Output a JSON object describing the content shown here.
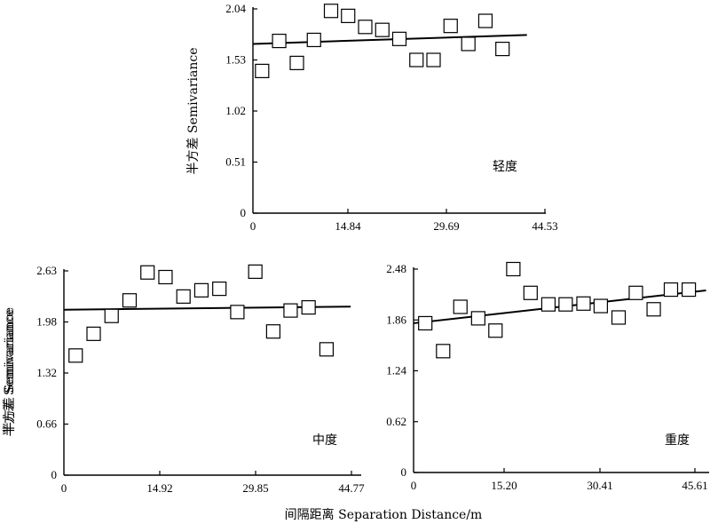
{
  "chart_data": [
    {
      "type": "scatter",
      "label": "轻度",
      "ylabel": "半方差 Semivariance",
      "xlim": [
        0,
        48
      ],
      "ylim": [
        0,
        2.04
      ],
      "xticks": [
        "14.84",
        "29.69",
        "44.53"
      ],
      "yticks": [
        "0",
        "0.51",
        "1.02",
        "1.53",
        "2.04"
      ],
      "x_origin_label": "0",
      "points": {
        "x": [
          1.5,
          4.3,
          7.2,
          10.0,
          12.8,
          15.6,
          18.4,
          21.2,
          24.0,
          26.8,
          29.6,
          32.4,
          35.3,
          38.1,
          40.9
        ],
        "y": [
          1.42,
          1.72,
          1.5,
          1.73,
          2.02,
          1.97,
          1.86,
          1.83,
          1.74,
          1.53,
          1.53,
          1.87,
          1.69,
          1.92,
          1.64
        ]
      },
      "trend": {
        "x": [
          0,
          44.9
        ],
        "y": [
          1.69,
          1.78
        ]
      }
    },
    {
      "type": "scatter",
      "label": "中度",
      "ylabel": "半方差 Semivariance",
      "xlim": [
        0,
        48
      ],
      "ylim": [
        0,
        2.63
      ],
      "xticks": [
        "14.92",
        "29.85",
        "44.77"
      ],
      "yticks": [
        "0",
        "0.66",
        "1.32",
        "1.98",
        "2.63"
      ],
      "x_origin_label": "0",
      "points": {
        "x": [
          1.9,
          4.8,
          7.7,
          10.6,
          13.5,
          16.4,
          19.3,
          22.2,
          25.1,
          28.0,
          30.9,
          33.8,
          36.6,
          39.5,
          42.4
        ],
        "y": [
          1.54,
          1.82,
          2.05,
          2.25,
          2.61,
          2.55,
          2.3,
          2.38,
          2.4,
          2.1,
          2.62,
          1.85,
          2.12,
          2.16,
          1.62
        ]
      },
      "trend": {
        "x": [
          0,
          46.3
        ],
        "y": [
          2.13,
          2.17
        ]
      }
    },
    {
      "type": "scatter",
      "label": "重度",
      "ylabel": "半方差 Semivariance",
      "xlim": [
        0,
        48
      ],
      "ylim": [
        0,
        2.48
      ],
      "xticks": [
        "15.20",
        "30.41",
        "45.61"
      ],
      "yticks": [
        "0",
        "0.62",
        "1.24",
        "1.86",
        "2.48"
      ],
      "x_origin_label": "0",
      "points": {
        "x": [
          1.9,
          4.8,
          7.6,
          10.5,
          13.3,
          16.2,
          19.0,
          21.9,
          24.7,
          27.6,
          30.4,
          33.3,
          36.1,
          39.0,
          41.8,
          44.7
        ],
        "y": [
          1.82,
          1.48,
          2.02,
          1.88,
          1.73,
          2.48,
          2.19,
          2.05,
          2.05,
          2.06,
          2.03,
          1.89,
          2.19,
          1.99,
          2.23,
          2.23
        ]
      },
      "trend": {
        "x": [
          0,
          47.5
        ],
        "y": [
          1.82,
          2.22
        ]
      }
    }
  ],
  "xlabel": "间隔距离 Separation Distance/m"
}
